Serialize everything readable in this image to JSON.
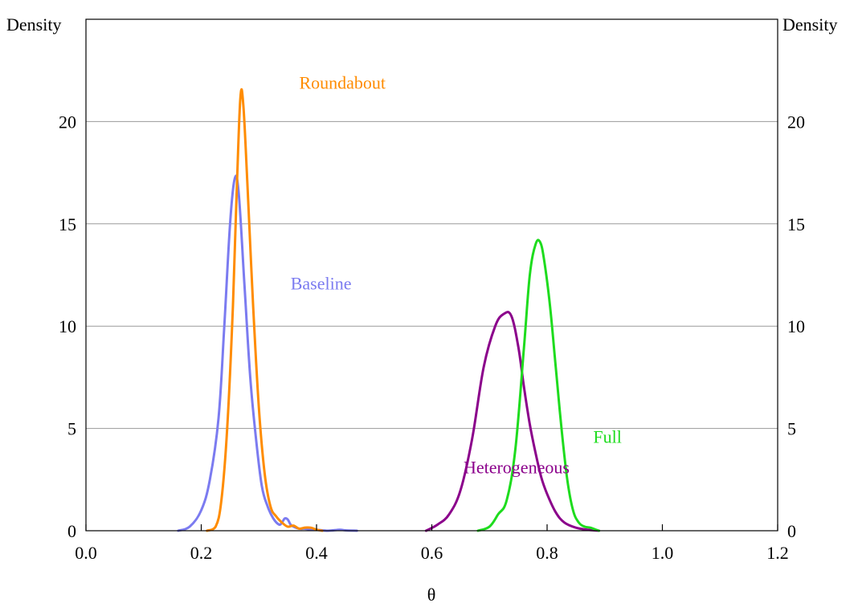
{
  "chart_data": {
    "type": "line",
    "xlabel": "θ",
    "ylabel_left": "Density",
    "ylabel_right": "Density",
    "xlim": [
      0.0,
      1.2
    ],
    "ylim": [
      0,
      25
    ],
    "xticks": [
      0.0,
      0.2,
      0.4,
      0.6,
      0.8,
      1.0,
      1.2
    ],
    "xtick_labels": [
      "0.0",
      "0.2",
      "0.4",
      "0.6",
      "0.8",
      "1.0",
      "1.2"
    ],
    "yticks": [
      0,
      5,
      10,
      15,
      20
    ],
    "ytick_labels": [
      "0",
      "5",
      "10",
      "15",
      "20"
    ],
    "grid": "horizontal",
    "series": [
      {
        "name": "Roundabout",
        "color": "#ff8c00",
        "x": [
          0.21,
          0.225,
          0.235,
          0.245,
          0.255,
          0.262,
          0.268,
          0.273,
          0.28,
          0.29,
          0.3,
          0.31,
          0.32,
          0.33,
          0.34,
          0.35,
          0.36,
          0.37,
          0.38,
          0.39,
          0.4,
          0.41
        ],
        "y": [
          0,
          0.2,
          1.5,
          5,
          11,
          17,
          21.2,
          20.8,
          17,
          11,
          6,
          2.8,
          1.2,
          0.7,
          0.4,
          0.2,
          0.25,
          0.1,
          0.15,
          0.15,
          0.05,
          0
        ]
      },
      {
        "name": "Baseline",
        "color": "#7b7bf0",
        "x": [
          0.16,
          0.18,
          0.2,
          0.215,
          0.23,
          0.24,
          0.25,
          0.258,
          0.265,
          0.275,
          0.285,
          0.295,
          0.305,
          0.315,
          0.325,
          0.335,
          0.34,
          0.345,
          0.35,
          0.355,
          0.36,
          0.37,
          0.38,
          0.39,
          0.4,
          0.42,
          0.44,
          0.45,
          0.47
        ],
        "y": [
          0,
          0.2,
          1,
          2.5,
          5.5,
          10,
          15,
          17.2,
          16.5,
          12,
          7.5,
          4.5,
          2.2,
          1.2,
          0.6,
          0.3,
          0.4,
          0.6,
          0.55,
          0.3,
          0.2,
          0.1,
          0.1,
          0.05,
          0.05,
          0,
          0.05,
          0.02,
          0
        ]
      },
      {
        "name": "Heterogeneous",
        "color": "#8b008b",
        "x": [
          0.59,
          0.61,
          0.63,
          0.65,
          0.67,
          0.69,
          0.71,
          0.725,
          0.738,
          0.75,
          0.76,
          0.77,
          0.78,
          0.79,
          0.8,
          0.815,
          0.83,
          0.85,
          0.87,
          0.89
        ],
        "y": [
          0,
          0.3,
          0.8,
          2,
          4.5,
          8,
          10,
          10.6,
          10.5,
          9,
          7,
          5.2,
          3.8,
          2.6,
          1.8,
          0.9,
          0.4,
          0.15,
          0.05,
          0
        ]
      },
      {
        "name": "Full",
        "color": "#1edc1e",
        "x": [
          0.68,
          0.7,
          0.715,
          0.73,
          0.745,
          0.76,
          0.77,
          0.78,
          0.788,
          0.795,
          0.805,
          0.815,
          0.825,
          0.835,
          0.845,
          0.855,
          0.865,
          0.875,
          0.885,
          0.89
        ],
        "y": [
          0,
          0.2,
          0.8,
          1.5,
          4,
          9,
          12.5,
          14,
          14.1,
          13.2,
          11,
          8,
          5,
          2.5,
          1,
          0.4,
          0.2,
          0.15,
          0.05,
          0
        ]
      }
    ],
    "annotations": [
      {
        "text": "Roundabout",
        "x": 0.37,
        "y": 21.6,
        "color": "#ff8c00"
      },
      {
        "text": "Baseline",
        "x": 0.355,
        "y": 11.8,
        "color": "#7b7bf0"
      },
      {
        "text": "Heterogeneous",
        "x": 0.655,
        "y": 2.8,
        "color": "#8b008b"
      },
      {
        "text": "Full",
        "x": 0.88,
        "y": 4.3,
        "color": "#1edc1e"
      }
    ]
  }
}
